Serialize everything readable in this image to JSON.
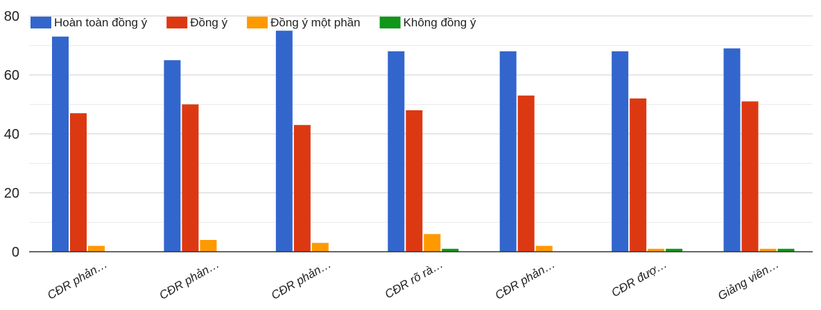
{
  "chart_data": {
    "type": "bar",
    "categories": [
      "CĐR phản…",
      "CĐR phản…",
      "CĐR phản…",
      "CĐR rõ rà…",
      "CĐR phản…",
      "CĐR đượ…",
      "Giảng viên…"
    ],
    "series": [
      {
        "name": "Hoàn toàn đồng ý",
        "color": "#3366cc",
        "values": [
          73,
          65,
          75,
          68,
          68,
          68,
          69
        ]
      },
      {
        "name": "Đồng ý",
        "color": "#dc3912",
        "values": [
          47,
          50,
          43,
          48,
          53,
          52,
          51
        ]
      },
      {
        "name": "Đồng ý một phần",
        "color": "#ff9900",
        "values": [
          2,
          4,
          3,
          6,
          2,
          1,
          1
        ]
      },
      {
        "name": "Không đồng ý",
        "color": "#109618",
        "values": [
          0,
          0,
          0,
          1,
          0,
          1,
          1
        ]
      }
    ],
    "yticks": [
      "0",
      "20",
      "40",
      "60",
      "80"
    ],
    "ylim": [
      0,
      80
    ],
    "grid": true,
    "legend": "top-left",
    "title": "",
    "xlabel": "",
    "ylabel": ""
  }
}
